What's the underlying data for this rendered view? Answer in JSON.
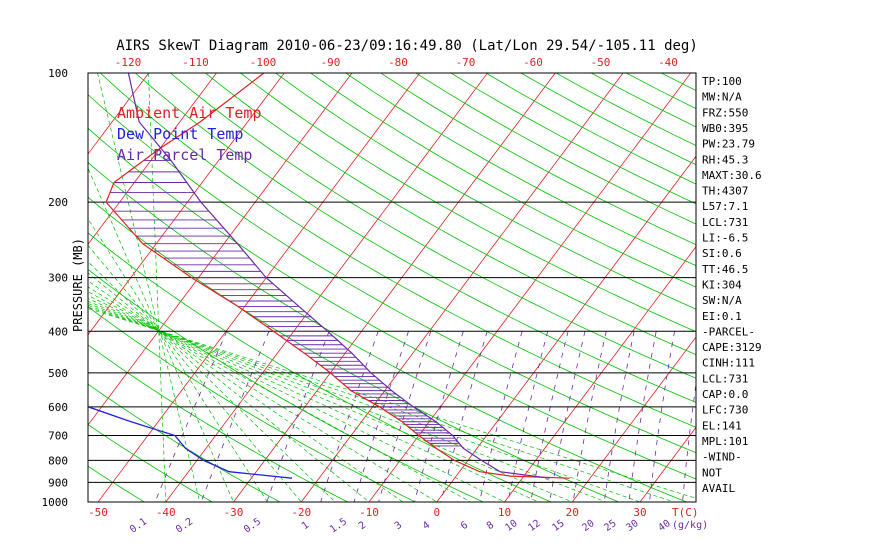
{
  "chart_data": {
    "type": "skewt",
    "title": "AIRS SkewT Diagram 2010-06-23/09:16:49.80 (Lat/Lon 29.54/-105.11 deg)",
    "ylabel": "PRESSURE (MB)",
    "top_temp_ticks": [
      "-120",
      "-110",
      "-100",
      "-90",
      "-80",
      "-70",
      "-60",
      "-50",
      "-40"
    ],
    "bottom_temp_ticks": [
      "-50",
      "-40",
      "-30",
      "-20",
      "-10",
      "0",
      "10",
      "20",
      "30"
    ],
    "bottom_unit_label": "T(C)",
    "mixing_ratio_ticks": [
      "0.1",
      "0.2",
      "0.5",
      "1",
      "1.5",
      "2",
      "3",
      "4",
      "6",
      "8",
      "10",
      "12",
      "15",
      "20",
      "25",
      "30",
      "40"
    ],
    "mixing_ratio_unit": "(g/kg)",
    "pressure_levels": [
      {
        "label": "100",
        "p": 100,
        "line": false
      },
      {
        "label": "200",
        "p": 200,
        "line": true
      },
      {
        "label": "300",
        "p": 300,
        "line": true
      },
      {
        "label": "400",
        "p": 400,
        "line": true
      },
      {
        "label": "500",
        "p": 500,
        "line": true
      },
      {
        "label": "600",
        "p": 600,
        "line": true
      },
      {
        "label": "700",
        "p": 700,
        "line": true
      },
      {
        "label": "800",
        "p": 800,
        "line": true
      },
      {
        "label": "900",
        "p": 900,
        "line": true
      },
      {
        "label": "1000",
        "p": 1000,
        "line": false
      }
    ],
    "legend": [
      {
        "name": "Ambient Air Temp",
        "color": "#e02020"
      },
      {
        "name": "Dew Point Temp",
        "color": "#2020e0"
      },
      {
        "name": "Air Parcel Temp",
        "color": "#6a2aa8"
      }
    ],
    "series": [
      {
        "name": "Ambient Air Temp",
        "color": "#e02020",
        "points": [
          [
            100,
            -73
          ],
          [
            130,
            -77
          ],
          [
            150,
            -80
          ],
          [
            180,
            -83
          ],
          [
            200,
            -82
          ],
          [
            250,
            -72
          ],
          [
            300,
            -61
          ],
          [
            350,
            -51
          ],
          [
            400,
            -43
          ],
          [
            450,
            -36
          ],
          [
            500,
            -30
          ],
          [
            550,
            -25
          ],
          [
            600,
            -19
          ],
          [
            650,
            -14
          ],
          [
            700,
            -10
          ],
          [
            750,
            -6
          ],
          [
            800,
            -2
          ],
          [
            850,
            3
          ],
          [
            870,
            8
          ],
          [
            880,
            17
          ]
        ]
      },
      {
        "name": "Dew Point Temp",
        "color": "#2020e0",
        "points": [
          [
            100,
            -122
          ],
          [
            130,
            -122
          ],
          [
            150,
            -121
          ],
          [
            180,
            -112
          ],
          [
            200,
            -105
          ],
          [
            250,
            -97
          ],
          [
            285,
            -97
          ],
          [
            300,
            -97
          ],
          [
            350,
            -98
          ],
          [
            400,
            -100
          ],
          [
            450,
            -93
          ],
          [
            500,
            -83
          ],
          [
            550,
            -72
          ],
          [
            600,
            -62
          ],
          [
            650,
            -54
          ],
          [
            700,
            -46
          ],
          [
            750,
            -43
          ],
          [
            800,
            -39
          ],
          [
            850,
            -34
          ],
          [
            880,
            -24
          ]
        ]
      },
      {
        "name": "Air Parcel Temp",
        "color": "#6a2aa8",
        "points": [
          [
            100,
            -93
          ],
          [
            130,
            -86
          ],
          [
            160,
            -77
          ],
          [
            200,
            -68
          ],
          [
            250,
            -58
          ],
          [
            300,
            -50
          ],
          [
            350,
            -42
          ],
          [
            400,
            -35
          ],
          [
            450,
            -29
          ],
          [
            500,
            -24
          ],
          [
            550,
            -19
          ],
          [
            600,
            -14
          ],
          [
            650,
            -9
          ],
          [
            700,
            -5
          ],
          [
            750,
            -2
          ],
          [
            800,
            2
          ],
          [
            850,
            6
          ],
          [
            880,
            14
          ]
        ]
      }
    ],
    "stats": [
      "TP:100",
      "MW:N/A",
      "FRZ:550",
      "WB0:395",
      "PW:23.79",
      "RH:45.3",
      "MAXT:30.6",
      "TH:4307",
      "L57:7.1",
      "LCL:731",
      "LI:-6.5",
      "SI:0.6",
      "TT:46.5",
      "KI:304",
      "SW:N/A",
      "EI:0.1",
      "-PARCEL-",
      "CAPE:3129",
      "CINH:111",
      "LCL:731",
      "CAP:0.0",
      "LFC:730",
      "EL:141",
      "MPL:101",
      "-WIND-",
      "NOT",
      "AVAIL"
    ],
    "colors": {
      "isotherm": "#e02020",
      "dry_adiabat": "#00c000",
      "moist_adiabat": "#00c000",
      "mixing_ratio": "#6a2aa8",
      "isobar": "#000000",
      "cape_hatch": "#6a2aa8",
      "tick_text": "#e02020"
    }
  }
}
